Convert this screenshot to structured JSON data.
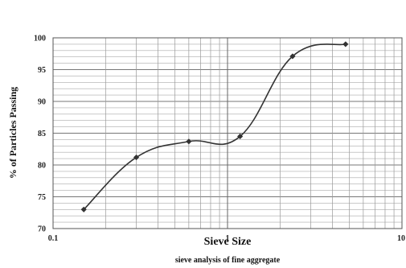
{
  "chart_data": {
    "type": "line",
    "xscale": "log",
    "xlim": [
      0.1,
      10
    ],
    "ylim": [
      70,
      100
    ],
    "x_ticks": [
      "0.1",
      "1",
      "10"
    ],
    "y_ticks": [
      "70",
      "75",
      "80",
      "85",
      "90",
      "95",
      "100"
    ],
    "xlabel": "Sieve Size",
    "ylabel": "% of Particles Passing",
    "caption": "sieve analysis of fine aggregate",
    "grid": true,
    "line_color": "#333333",
    "series": [
      {
        "x": [
          0.15,
          0.3,
          0.6,
          1.18,
          2.36,
          4.75
        ],
        "values": [
          73.0,
          81.2,
          83.7,
          84.5,
          97.1,
          99.0
        ]
      }
    ]
  }
}
